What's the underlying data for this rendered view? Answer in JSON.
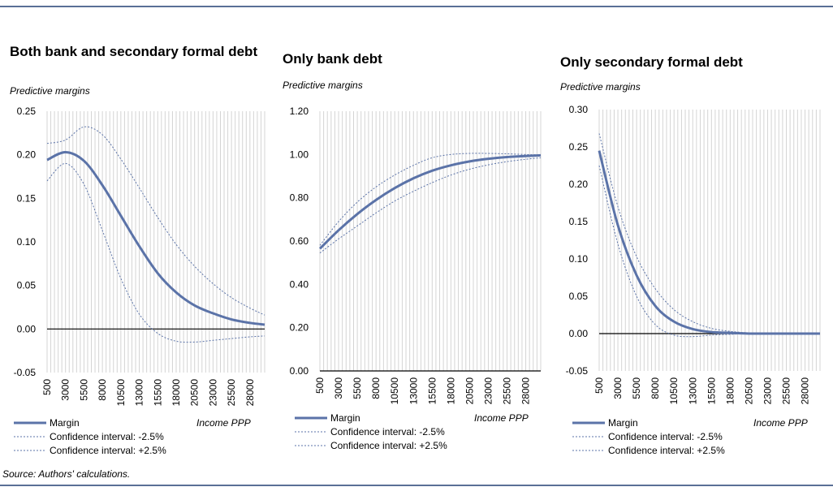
{
  "source": "Source: Authors' calculations.",
  "chart_data": [
    {
      "type": "line",
      "title": "Both bank and secondary formal debt",
      "subtitle": "Predictive margins",
      "xlabel": "Income PPP",
      "ylim": [
        -0.05,
        0.25
      ],
      "yticks": [
        "0.25",
        "0.20",
        "0.15",
        "0.10",
        "0.05",
        "0.00",
        "-0.05"
      ],
      "ytick_values": [
        0.25,
        0.2,
        0.15,
        0.1,
        0.05,
        0.0,
        -0.05
      ],
      "xticks": [
        "500",
        "3000",
        "5500",
        "8000",
        "10500",
        "13000",
        "15500",
        "18000",
        "20500",
        "23000",
        "25500",
        "28000"
      ],
      "x": [
        500,
        3000,
        5500,
        8000,
        10500,
        13000,
        15500,
        18000,
        20500,
        23000,
        25500,
        28000,
        30000
      ],
      "series": [
        {
          "name": "Margin",
          "values": [
            0.194,
            0.203,
            0.193,
            0.165,
            0.13,
            0.095,
            0.064,
            0.042,
            0.027,
            0.018,
            0.011,
            0.007,
            0.005
          ]
        },
        {
          "name": "Confidence interval: -2.5%",
          "values": [
            0.17,
            0.19,
            0.166,
            0.113,
            0.058,
            0.017,
            -0.005,
            -0.014,
            -0.015,
            -0.013,
            -0.011,
            -0.009,
            -0.008
          ]
        },
        {
          "name": "Confidence interval: +2.5%",
          "values": [
            0.213,
            0.217,
            0.232,
            0.223,
            0.195,
            0.162,
            0.128,
            0.097,
            0.072,
            0.052,
            0.036,
            0.024,
            0.016
          ]
        }
      ],
      "legend": [
        "Margin",
        "Confidence interval: -2.5%",
        "Confidence interval: +2.5%"
      ]
    },
    {
      "type": "line",
      "title": "Only bank debt",
      "subtitle": "Predictive margins",
      "xlabel": "Income PPP",
      "ylim": [
        0.0,
        1.2
      ],
      "yticks": [
        "1.20",
        "1.00",
        "0.80",
        "0.60",
        "0.40",
        "0.20",
        "0.00"
      ],
      "ytick_values": [
        1.2,
        1.0,
        0.8,
        0.6,
        0.4,
        0.2,
        0.0
      ],
      "xticks": [
        "500",
        "3000",
        "5500",
        "8000",
        "10500",
        "13000",
        "15500",
        "18000",
        "20500",
        "23000",
        "25500",
        "28000"
      ],
      "x": [
        500,
        3000,
        5500,
        8000,
        10500,
        13000,
        15500,
        18000,
        20500,
        23000,
        25500,
        28000,
        30000
      ],
      "series": [
        {
          "name": "Margin",
          "values": [
            0.565,
            0.65,
            0.725,
            0.79,
            0.845,
            0.89,
            0.925,
            0.95,
            0.968,
            0.98,
            0.988,
            0.993,
            0.996
          ]
        },
        {
          "name": "Confidence interval: -2.5%",
          "values": [
            0.545,
            0.61,
            0.67,
            0.73,
            0.785,
            0.83,
            0.87,
            0.905,
            0.932,
            0.952,
            0.967,
            0.978,
            0.985
          ]
        },
        {
          "name": "Confidence interval: +2.5%",
          "values": [
            0.58,
            0.69,
            0.78,
            0.85,
            0.905,
            0.95,
            0.985,
            1.0,
            1.005,
            1.005,
            1.003,
            1.0,
            0.998
          ]
        }
      ],
      "legend": [
        "Margin",
        "Confidence interval: -2.5%",
        "Confidence interval: +2.5%"
      ]
    },
    {
      "type": "line",
      "title": "Only secondary formal debt",
      "subtitle": "Predictive margins",
      "xlabel": "Income PPP",
      "ylim": [
        -0.05,
        0.3
      ],
      "yticks": [
        "0.30",
        "0.25",
        "0.20",
        "0.15",
        "0.10",
        "0.05",
        "0.00",
        "-0.05"
      ],
      "ytick_values": [
        0.3,
        0.25,
        0.2,
        0.15,
        0.1,
        0.05,
        0.0,
        -0.05
      ],
      "xticks": [
        "500",
        "3000",
        "5500",
        "8000",
        "10500",
        "13000",
        "15500",
        "18000",
        "20500",
        "23000",
        "25500",
        "28000"
      ],
      "x": [
        500,
        3000,
        5500,
        8000,
        10500,
        13000,
        15500,
        18000,
        20500,
        23000,
        25500,
        28000,
        30000
      ],
      "series": [
        {
          "name": "Margin",
          "values": [
            0.245,
            0.145,
            0.078,
            0.037,
            0.016,
            0.006,
            0.002,
            0.001,
            0.0,
            0.0,
            0.0,
            0.0,
            0.0
          ]
        },
        {
          "name": "Confidence interval: -2.5%",
          "values": [
            0.225,
            0.12,
            0.05,
            0.012,
            -0.002,
            -0.004,
            -0.002,
            -0.001,
            0.0,
            0.0,
            0.0,
            0.0,
            0.0
          ]
        },
        {
          "name": "Confidence interval: +2.5%",
          "values": [
            0.268,
            0.17,
            0.103,
            0.06,
            0.032,
            0.016,
            0.007,
            0.003,
            0.001,
            0.0,
            0.0,
            0.0,
            0.0
          ]
        }
      ],
      "legend": [
        "Margin",
        "Confidence interval: -2.5%",
        "Confidence interval: +2.5%"
      ]
    }
  ],
  "colors": {
    "line": "#5b73a8",
    "grid": "#d4d4d4",
    "axis": "#000000",
    "rule": "#5a6f96"
  }
}
